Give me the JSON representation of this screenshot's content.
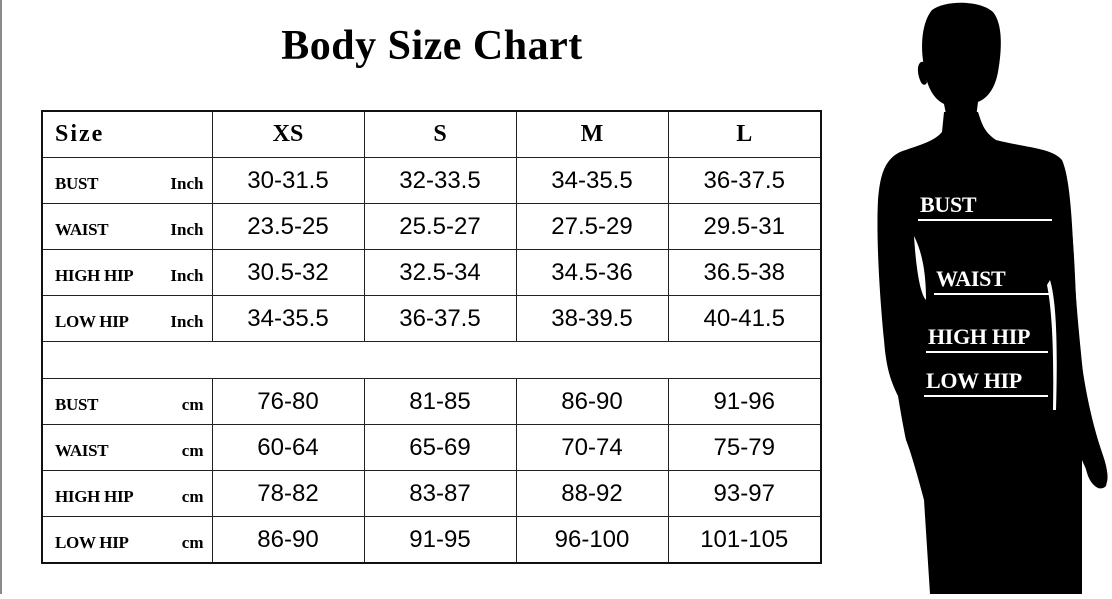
{
  "title": "Body Size Chart",
  "table": {
    "size_header": "Size",
    "sizes": [
      "XS",
      "S",
      "M",
      "L"
    ],
    "inch_rows": [
      {
        "label": "BUST",
        "unit": "Inch",
        "values": [
          "30-31.5",
          "32-33.5",
          "34-35.5",
          "36-37.5"
        ]
      },
      {
        "label": "WAIST",
        "unit": "Inch",
        "values": [
          "23.5-25",
          "25.5-27",
          "27.5-29",
          "29.5-31"
        ]
      },
      {
        "label": "HIGH HIP",
        "unit": "Inch",
        "values": [
          "30.5-32",
          "32.5-34",
          "34.5-36",
          "36.5-38"
        ]
      },
      {
        "label": "LOW HIP",
        "unit": "Inch",
        "values": [
          "34-35.5",
          "36-37.5",
          "38-39.5",
          "40-41.5"
        ]
      }
    ],
    "cm_rows": [
      {
        "label": "BUST",
        "unit": "cm",
        "values": [
          "76-80",
          "81-85",
          "86-90",
          "91-96"
        ]
      },
      {
        "label": "WAIST",
        "unit": "cm",
        "values": [
          "60-64",
          "65-69",
          "70-74",
          "75-79"
        ]
      },
      {
        "label": "HIGH HIP",
        "unit": "cm",
        "values": [
          "78-82",
          "83-87",
          "88-92",
          "93-97"
        ]
      },
      {
        "label": "LOW HIP",
        "unit": "cm",
        "values": [
          "86-90",
          "91-95",
          "96-100",
          "101-105"
        ]
      }
    ]
  },
  "figure": {
    "labels": [
      "BUST",
      "WAIST",
      "HIGH HIP",
      "LOW HIP"
    ],
    "silhouette_color": "#000000",
    "label_color": "#ffffff"
  }
}
